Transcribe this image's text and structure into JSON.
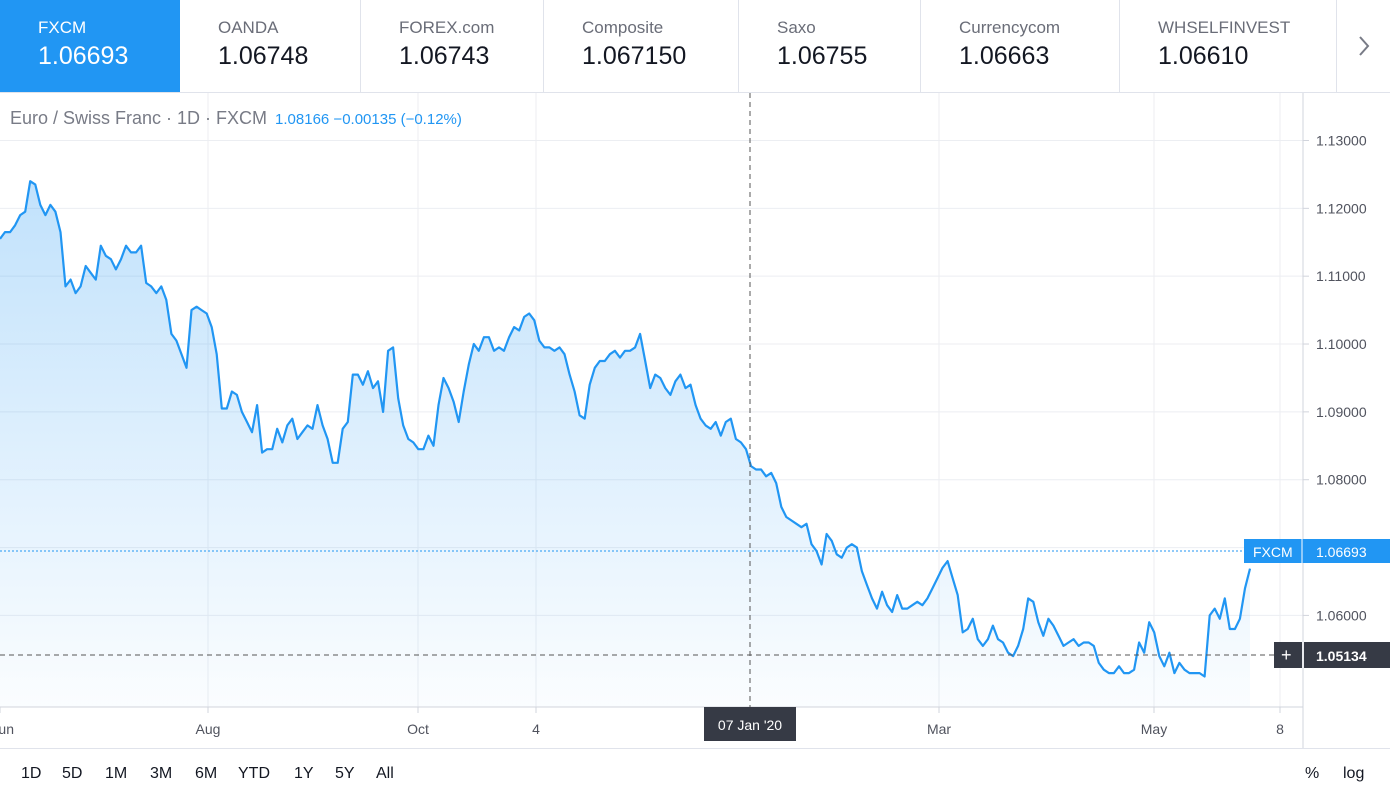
{
  "tabs": [
    {
      "name": "FXCM",
      "price": "1.06693",
      "active": true
    },
    {
      "name": "OANDA",
      "price": "1.06748",
      "active": false
    },
    {
      "name": "FOREX.com",
      "price": "1.06743",
      "active": false
    },
    {
      "name": "Composite",
      "price": "1.067150",
      "active": false
    },
    {
      "name": "Saxo",
      "price": "1.06755",
      "active": false
    },
    {
      "name": "Currencycom",
      "price": "1.06663",
      "active": false
    },
    {
      "name": "WHSELFINVEST",
      "price": "1.06610",
      "active": false
    }
  ],
  "legend": {
    "title": "Euro / Swiss Franc · 1D · FXCM",
    "values": "1.08166  −0.00135 (−0.12%)"
  },
  "price_tag": {
    "source": "FXCM",
    "value": "1.06693"
  },
  "crosshair": {
    "price": "1.05134",
    "date": "07 Jan '20",
    "plus": "+"
  },
  "bottom": {
    "ranges": [
      "1D",
      "5D",
      "1M",
      "3M",
      "6M",
      "YTD",
      "1Y",
      "5Y",
      "All"
    ],
    "percent_label": "%",
    "log_label": "log"
  },
  "colors": {
    "accent": "#2196f3",
    "line": "#2196f3",
    "crosshair_label_bg": "#363a45"
  },
  "chart_data": {
    "type": "area",
    "title": "Euro / Swiss Franc · 1D · FXCM",
    "x_ticks": [
      "un",
      "Aug",
      "Oct",
      "4",
      "Mar",
      "May",
      "8"
    ],
    "y_ticks": [
      "1.13000",
      "1.12000",
      "1.11000",
      "1.10000",
      "1.09000",
      "1.08000",
      "1.07000",
      "1.06000"
    ],
    "ylim": [
      1.0465,
      1.137
    ],
    "series": [
      {
        "values": [
          1.1155,
          1.1165,
          1.1165,
          1.1175,
          1.119,
          1.1195,
          1.124,
          1.1235,
          1.1205,
          1.119,
          1.1205,
          1.1195,
          1.1165,
          1.1085,
          1.1095,
          1.1075,
          1.1085,
          1.1115,
          1.1105,
          1.1095,
          1.1145,
          1.113,
          1.1125,
          1.111,
          1.1125,
          1.1145,
          1.1135,
          1.1135,
          1.1145,
          1.109,
          1.1085,
          1.1075,
          1.1085,
          1.1065,
          1.1015,
          1.1005,
          1.0985,
          1.0965,
          1.105,
          1.1055,
          1.105,
          1.1045,
          1.1025,
          1.0985,
          1.0905,
          1.0905,
          1.093,
          1.0925,
          1.09,
          1.0885,
          1.087,
          1.091,
          1.084,
          1.0845,
          1.0845,
          1.0875,
          1.0855,
          1.088,
          1.089,
          1.086,
          1.087,
          1.088,
          1.0875,
          1.091,
          1.088,
          1.086,
          1.0825,
          1.0825,
          1.0875,
          1.0885,
          1.0955,
          1.0955,
          1.094,
          1.096,
          1.0935,
          1.0945,
          1.09,
          1.099,
          1.0995,
          1.092,
          1.088,
          1.086,
          1.0855,
          1.0845,
          1.0845,
          1.0865,
          1.085,
          1.091,
          1.095,
          1.0935,
          1.0915,
          1.0885,
          1.093,
          1.097,
          1.1,
          1.099,
          1.101,
          1.101,
          1.099,
          1.0995,
          1.099,
          1.101,
          1.1025,
          1.102,
          1.104,
          1.1045,
          1.1035,
          1.1005,
          1.0995,
          1.0995,
          1.099,
          1.0995,
          1.0985,
          1.0955,
          1.093,
          1.0895,
          1.089,
          1.094,
          1.0965,
          1.0975,
          1.0975,
          1.0985,
          1.099,
          1.098,
          1.099,
          1.099,
          1.0995,
          1.1015,
          1.0975,
          1.0935,
          1.0955,
          1.095,
          1.0935,
          1.0925,
          1.0945,
          1.0955,
          1.0935,
          1.094,
          1.091,
          1.089,
          1.088,
          1.0875,
          1.0885,
          1.0865,
          1.0885,
          1.089,
          1.086,
          1.0855,
          1.0845,
          1.082,
          1.0815,
          1.0815,
          1.0805,
          1.081,
          1.0795,
          1.076,
          1.0745,
          1.074,
          1.0735,
          1.073,
          1.0735,
          1.0705,
          1.0695,
          1.0675,
          1.072,
          1.071,
          1.069,
          1.0685,
          1.07,
          1.0705,
          1.07,
          1.0665,
          1.0645,
          1.0625,
          1.061,
          1.0635,
          1.0615,
          1.0605,
          1.063,
          1.061,
          1.061,
          1.0615,
          1.062,
          1.0615,
          1.0625,
          1.064,
          1.0655,
          1.067,
          1.068,
          1.0655,
          1.063,
          1.0575,
          1.058,
          1.0595,
          1.0565,
          1.0555,
          1.0565,
          1.0585,
          1.0565,
          1.056,
          1.0545,
          1.054,
          1.0555,
          1.058,
          1.0625,
          1.062,
          1.059,
          1.057,
          1.0595,
          1.0585,
          1.057,
          1.0555,
          1.056,
          1.0565,
          1.0555,
          1.056,
          1.056,
          1.0555,
          1.053,
          1.052,
          1.0515,
          1.0515,
          1.0525,
          1.0515,
          1.0515,
          1.052,
          1.056,
          1.0545,
          1.059,
          1.0575,
          1.054,
          1.0525,
          1.0545,
          1.0515,
          1.053,
          1.052,
          1.0515,
          1.0515,
          1.0515,
          1.051,
          1.06,
          1.061,
          1.0595,
          1.0625,
          1.058,
          1.058,
          1.0595,
          1.064,
          1.0669
        ]
      }
    ],
    "grid": true,
    "last_value": 1.06693
  }
}
